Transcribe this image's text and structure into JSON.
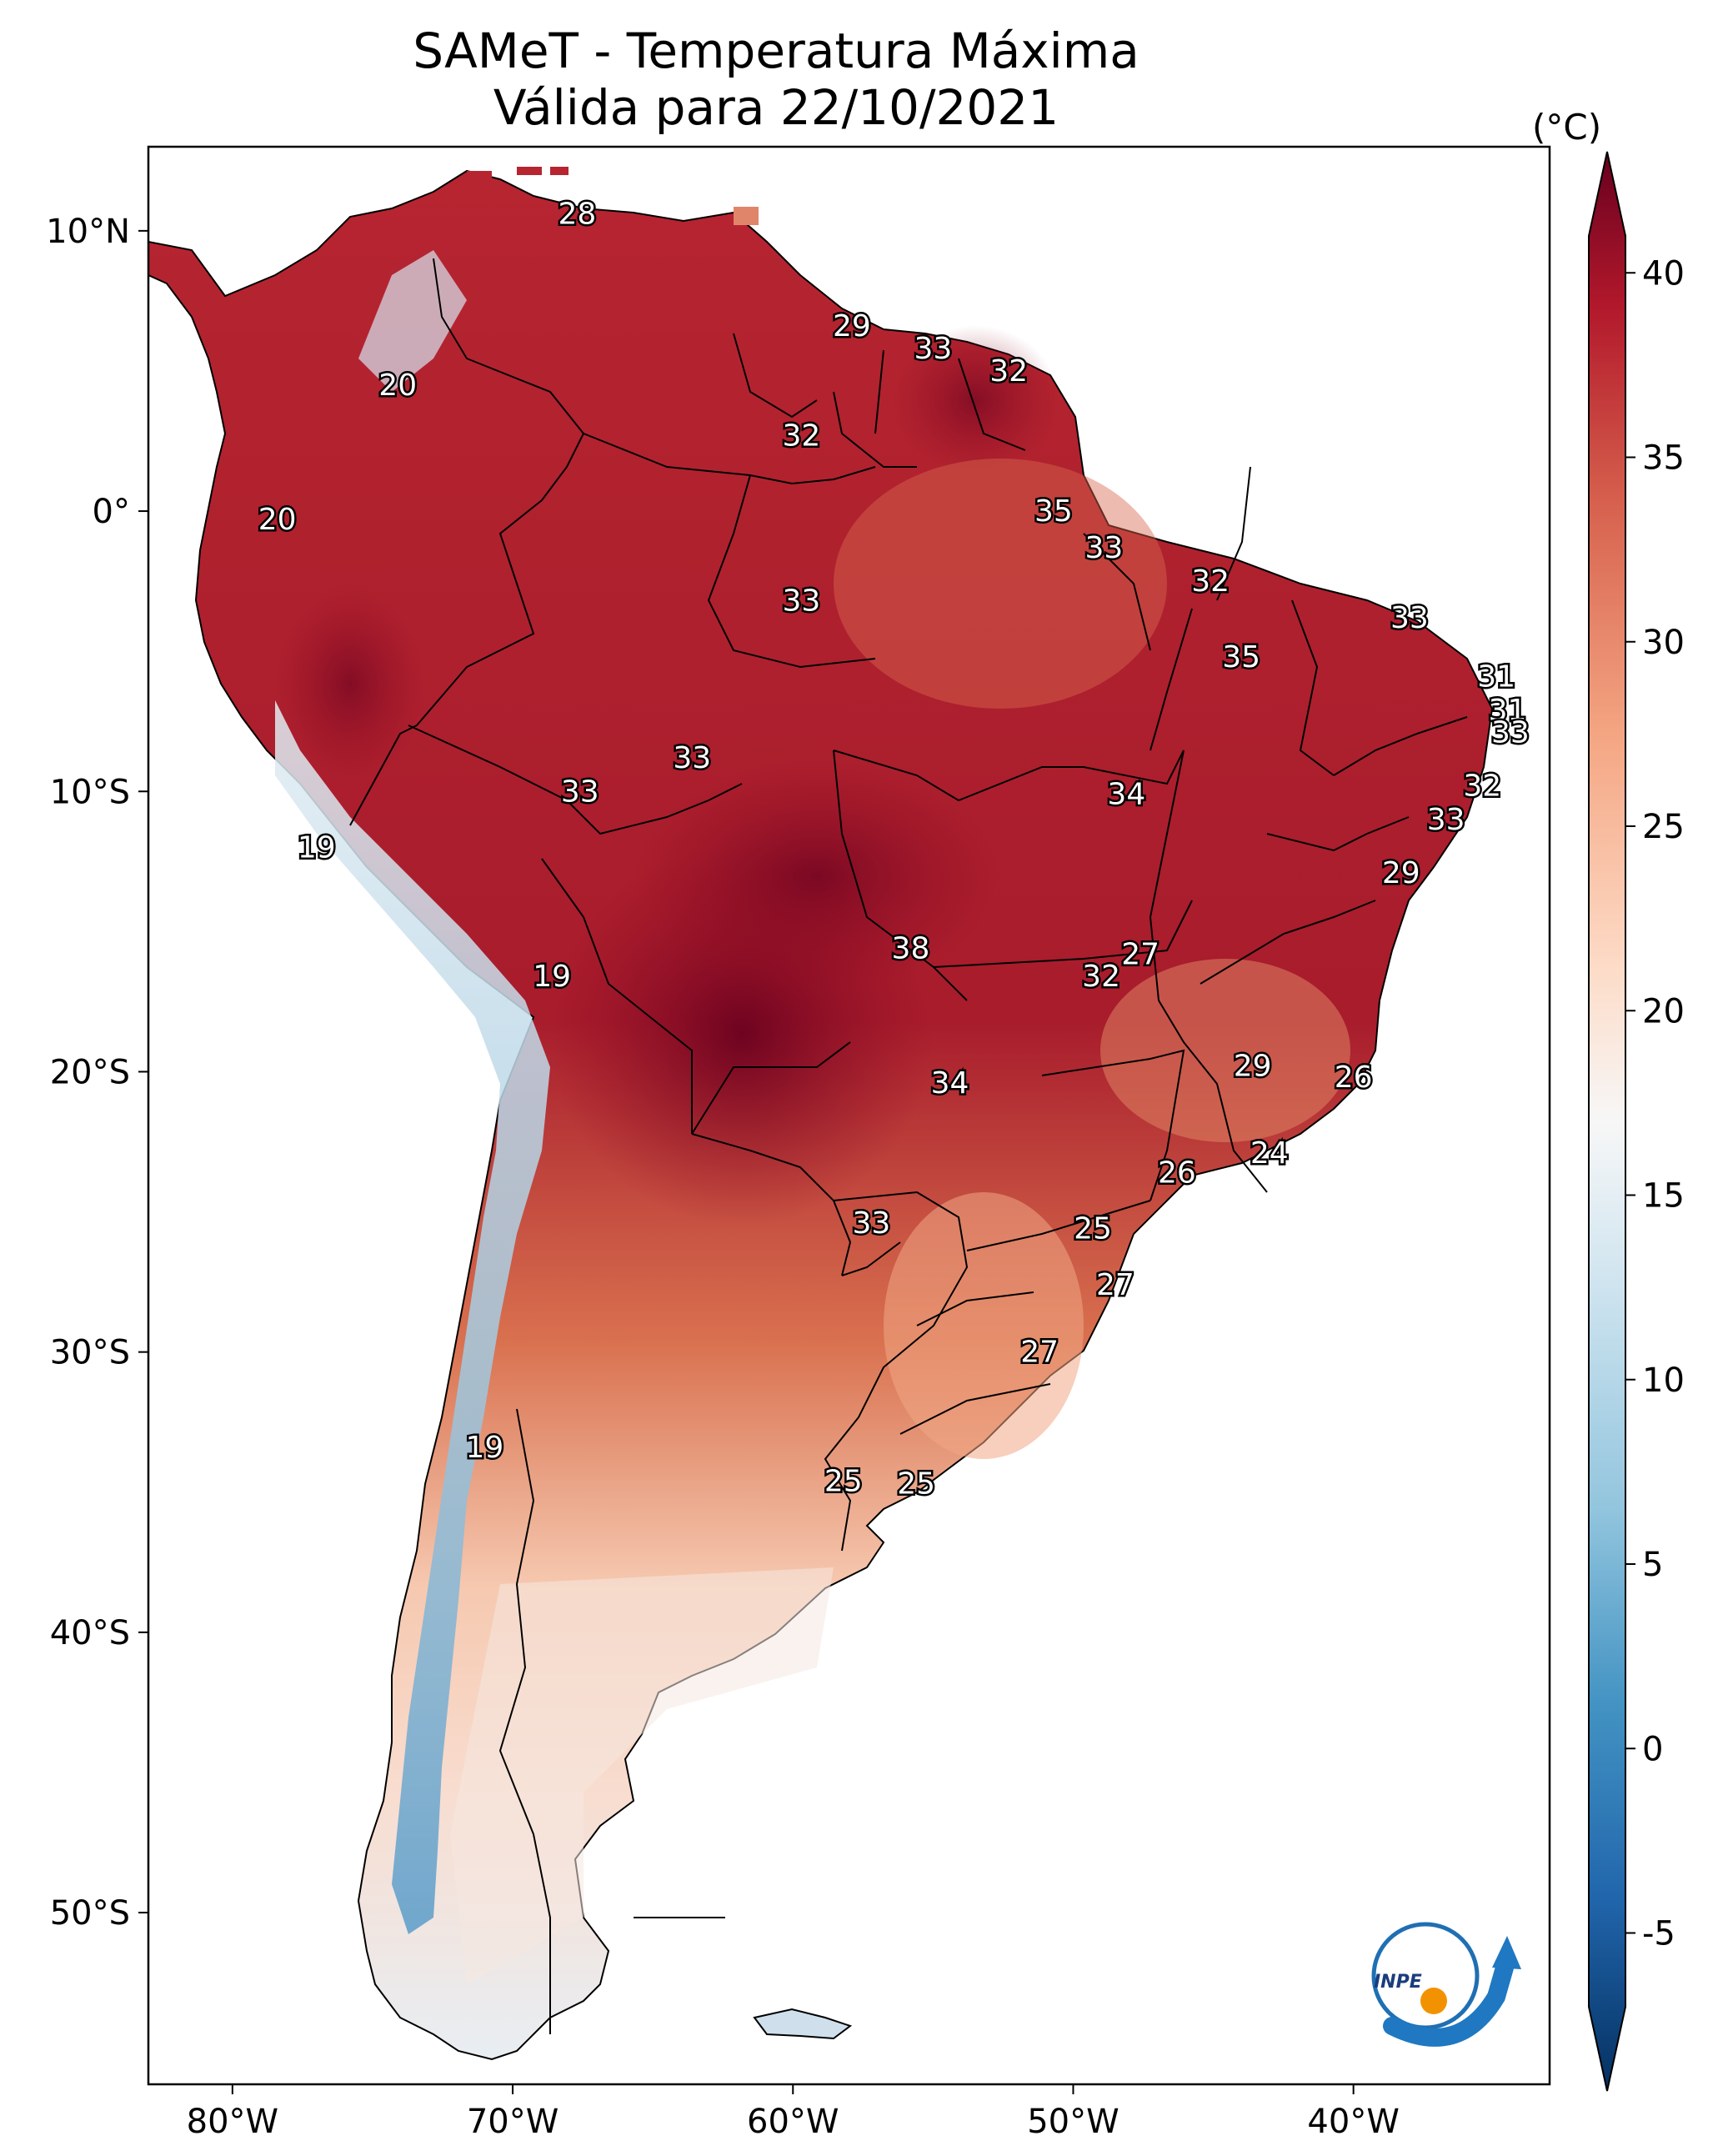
{
  "title": {
    "line1": "SAMeT - Temperatura Máxima",
    "line2": "Válida para 22/10/2021"
  },
  "colorbar": {
    "unit": "(°C)",
    "ticks": [
      "40",
      "35",
      "30",
      "25",
      "20",
      "15",
      "10",
      "5",
      "0",
      "-5"
    ],
    "range": [
      -7,
      41
    ],
    "colors": {
      "max": "#67001f",
      "high": "#b2182b",
      "warm": "#d6604d",
      "mild": "#f4a582",
      "light": "#fddbc7",
      "neutral": "#f7f7f7",
      "cool": "#d1e5f0",
      "cold": "#92c5de",
      "colder": "#4393c3",
      "coldest": "#2166ac",
      "min": "#053061"
    }
  },
  "axes": {
    "lon_labels": [
      "80°W",
      "70°W",
      "60°W",
      "50°W",
      "40°W"
    ],
    "lat_labels": [
      "10°N",
      "0°",
      "10°S",
      "20°S",
      "30°S",
      "40°S",
      "50°S"
    ]
  },
  "temperature_labels": [
    {
      "text": "28",
      "lon": -67.7,
      "lat": 10.6
    },
    {
      "text": "29",
      "lon": -57.9,
      "lat": 6.6
    },
    {
      "text": "33",
      "lon": -55.0,
      "lat": 5.8
    },
    {
      "text": "32",
      "lon": -52.3,
      "lat": 5.0
    },
    {
      "text": "20",
      "lon": -74.1,
      "lat": 4.5
    },
    {
      "text": "32",
      "lon": -59.7,
      "lat": 2.7
    },
    {
      "text": "20",
      "lon": -78.4,
      "lat": -0.3
    },
    {
      "text": "35",
      "lon": -50.7,
      "lat": 0.0
    },
    {
      "text": "33",
      "lon": -48.9,
      "lat": -1.3
    },
    {
      "text": "32",
      "lon": -45.1,
      "lat": -2.5
    },
    {
      "text": "33",
      "lon": -59.7,
      "lat": -3.2
    },
    {
      "text": "33",
      "lon": -38.0,
      "lat": -3.8
    },
    {
      "text": "35",
      "lon": -44.0,
      "lat": -5.2
    },
    {
      "text": "31",
      "lon": -34.9,
      "lat": -5.9
    },
    {
      "text": "31",
      "lon": -34.5,
      "lat": -7.1
    },
    {
      "text": "33",
      "lon": -34.4,
      "lat": -7.9
    },
    {
      "text": "33",
      "lon": -63.6,
      "lat": -8.8
    },
    {
      "text": "32",
      "lon": -35.4,
      "lat": -9.8
    },
    {
      "text": "33",
      "lon": -67.6,
      "lat": -10.0
    },
    {
      "text": "34",
      "lon": -48.1,
      "lat": -10.1
    },
    {
      "text": "33",
      "lon": -36.7,
      "lat": -11.0
    },
    {
      "text": "19",
      "lon": -77.0,
      "lat": -12.0
    },
    {
      "text": "29",
      "lon": -38.3,
      "lat": -12.9
    },
    {
      "text": "38",
      "lon": -55.8,
      "lat": -15.6
    },
    {
      "text": "27",
      "lon": -47.6,
      "lat": -15.8
    },
    {
      "text": "19",
      "lon": -68.6,
      "lat": -16.6
    },
    {
      "text": "32",
      "lon": -49.0,
      "lat": -16.6
    },
    {
      "text": "29",
      "lon": -43.6,
      "lat": -19.8
    },
    {
      "text": "26",
      "lon": -40.0,
      "lat": -20.2
    },
    {
      "text": "34",
      "lon": -54.4,
      "lat": -20.4
    },
    {
      "text": "24",
      "lon": -43.0,
      "lat": -22.9
    },
    {
      "text": "26",
      "lon": -46.3,
      "lat": -23.6
    },
    {
      "text": "25",
      "lon": -49.3,
      "lat": -25.6
    },
    {
      "text": "33",
      "lon": -57.2,
      "lat": -25.4
    },
    {
      "text": "27",
      "lon": -48.5,
      "lat": -27.6
    },
    {
      "text": "27",
      "lon": -51.2,
      "lat": -30.0
    },
    {
      "text": "19",
      "lon": -71.0,
      "lat": -33.4
    },
    {
      "text": "25",
      "lon": -58.2,
      "lat": -34.6
    },
    {
      "text": "25",
      "lon": -55.6,
      "lat": -34.7
    }
  ],
  "logo": {
    "text": "INPE"
  }
}
